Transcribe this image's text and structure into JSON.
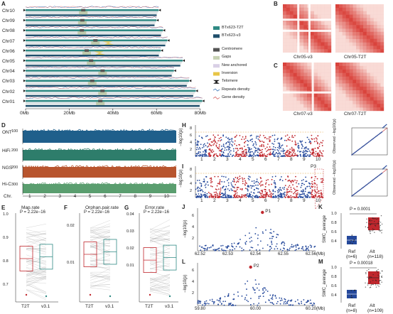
{
  "panel_labels": {
    "A": "A",
    "B": "B",
    "C": "C",
    "D": "D",
    "E": "E",
    "F": "F",
    "G": "G",
    "H": "H",
    "I": "I",
    "J": "J",
    "K": "K",
    "L": "L",
    "M": "M"
  },
  "panelA": {
    "chromosomes": [
      "Chr10",
      "Chr09",
      "Chr08",
      "Chr07",
      "Chr06",
      "Chr05",
      "Chr04",
      "Chr03",
      "Chr02",
      "Chr01"
    ],
    "lengths_mb": [
      61,
      60,
      63,
      65,
      62,
      72,
      68,
      75,
      78,
      81
    ],
    "x_ticks": [
      "0Mb",
      "20Mb",
      "40Mb",
      "60Mb",
      "80Mb"
    ],
    "legend": [
      "BTx623-T2T",
      "BTx623-v3",
      "Centromere",
      "Gaps",
      "New anchored",
      "Inversion",
      "Telomere",
      "Repeats density",
      "Gene density"
    ]
  },
  "panelB": {
    "left": "Chr05-v3",
    "right": "Chr05-T2T"
  },
  "panelC": {
    "left": "Chr07-v3",
    "right": "Chr07-T2T"
  },
  "panelD": {
    "tracks": [
      "ONT",
      "HiFi",
      "NGS",
      "Hi-C"
    ],
    "y_ticks": [
      "100",
      "200",
      "200",
      "300"
    ],
    "x_label": "Chr.",
    "chr_ticks": [
      "1",
      "2",
      "3",
      "4",
      "5",
      "6",
      "7",
      "8",
      "9",
      "10"
    ]
  },
  "panelE": {
    "title": "Map.rate",
    "p": "P = 2.22e−16",
    "y_ticks": [
      "1.0",
      "0.9",
      "0.8",
      "0.7"
    ],
    "x_ticks": [
      "T2T",
      "v3.1"
    ]
  },
  "panelF": {
    "title": "Orphan.pair.rate",
    "p": "P = 2.22e−16",
    "y_ticks": [
      "0.02",
      "0.01"
    ],
    "x_ticks": [
      "T2T",
      "v3.1"
    ]
  },
  "panelG": {
    "title": "Error.rate",
    "p": "P = 2.22e−16",
    "y_ticks": [
      "0.04",
      "0.03",
      "0.02",
      "0.01"
    ],
    "x_ticks": [
      "T2T",
      "v3.1"
    ]
  },
  "panelH": {
    "ylabel": "−log10(p)",
    "y_ticks": [
      "8",
      "6",
      "4",
      "2"
    ],
    "chr_ticks": [
      "1",
      "2",
      "3",
      "4",
      "5",
      "6",
      "7",
      "8",
      "9",
      "10"
    ],
    "qq_ylabel": "Observed −log10(p)"
  },
  "panelI": {
    "ylabel": "−log10(p)",
    "y_ticks": [
      "8",
      "6",
      "4",
      "2"
    ],
    "chr_ticks": [
      "1",
      "2",
      "3",
      "4",
      "5",
      "6",
      "7",
      "8",
      "9",
      "10"
    ],
    "peak_label": "P3",
    "qq_ylabel": "Observed −log10(p)"
  },
  "panelJ": {
    "ylabel": "−log10(p)",
    "peak": "P1",
    "y_ticks": [
      "6",
      "4",
      "2"
    ],
    "x_ticks": [
      "62.52",
      "62.53",
      "62.54",
      "62.55",
      "62.56(Mb)"
    ]
  },
  "panelK": {
    "ylabel": "SWC_average",
    "p": "P = 0.0001",
    "y_ticks": [
      "1.0",
      "0.8",
      "0.6",
      "0.4"
    ],
    "groups": [
      {
        "name": "Ref",
        "n": "(n=6)"
      },
      {
        "name": "Alt",
        "n": "(n=118)"
      }
    ]
  },
  "panelL": {
    "ylabel": "−log10(p)",
    "peak": "P2",
    "y_ticks": [
      "6",
      "4",
      "2"
    ],
    "x_ticks": [
      "59.80",
      "60.00",
      "60.20(Mb)"
    ]
  },
  "panelM": {
    "ylabel": "SWC_average",
    "p": "P = 0.00018",
    "y_ticks": [
      "1.0",
      "0.8",
      "0.6",
      "0.4"
    ],
    "groups": [
      {
        "name": "Ref",
        "n": "(n=8)"
      },
      {
        "name": "Alt",
        "n": "(n=109)"
      }
    ]
  },
  "colors": {
    "t2t": "#2f8a84",
    "v3": "#1f4e6b",
    "red": "#c0272d",
    "blue": "#24489b",
    "ont": "#1f5f8b",
    "hifi": "#2e7d6b",
    "ngs": "#b8552e",
    "hic": "#5a9e6f",
    "heat": "#d9433c"
  }
}
